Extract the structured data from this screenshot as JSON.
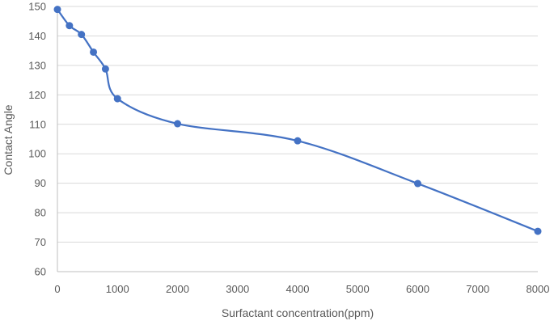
{
  "chart_data": {
    "type": "scatter",
    "title": "",
    "xlabel": "Surfactant concentration(ppm)",
    "ylabel": "Contact Angle",
    "xlim": [
      0,
      8000
    ],
    "ylim": [
      60,
      150
    ],
    "xticks": [
      0,
      1000,
      2000,
      3000,
      4000,
      5000,
      6000,
      7000,
      8000
    ],
    "yticks": [
      60,
      70,
      80,
      90,
      100,
      110,
      120,
      130,
      140,
      150
    ],
    "grid": true,
    "line_style": "smooth",
    "series_color": "#4472c4",
    "series": [
      {
        "x": [
          0,
          200,
          400,
          600,
          800,
          1000,
          2000,
          4000,
          6000,
          8000
        ],
        "y": [
          149,
          143.5,
          140.5,
          134.5,
          128.8,
          118.7,
          110.2,
          104.4,
          89.9,
          73.7
        ]
      }
    ]
  }
}
